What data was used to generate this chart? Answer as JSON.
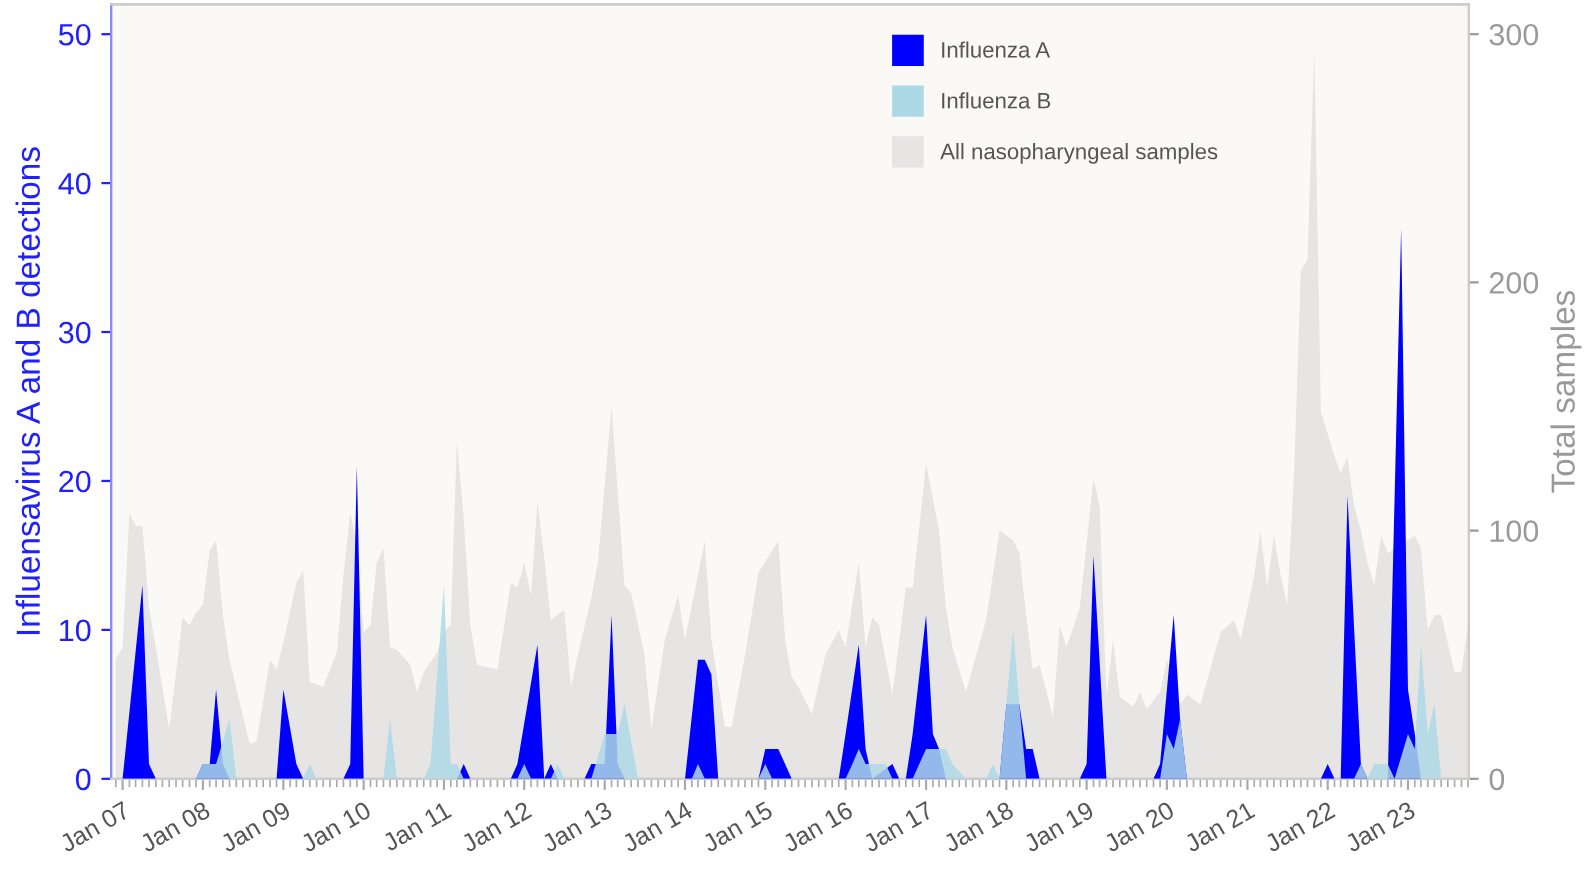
{
  "chart_data": {
    "type": "area",
    "ylabel": "Influensavirus A and B detections",
    "y2label": "Total samples",
    "ylim": [
      0,
      52
    ],
    "yticks": [
      0,
      10,
      20,
      30,
      40,
      50
    ],
    "y2lim": [
      0,
      312
    ],
    "y2ticks": [
      0,
      100,
      200,
      300
    ],
    "xlim": [
      "2006-11-10",
      "2023-10-05"
    ],
    "xticks": [
      {
        "value": "2007-01",
        "label": "Jan 07"
      },
      {
        "value": "2008-01",
        "label": "Jan 08"
      },
      {
        "value": "2009-01",
        "label": "Jan 09"
      },
      {
        "value": "2010-01",
        "label": "Jan 10"
      },
      {
        "value": "2011-01",
        "label": "Jan 11"
      },
      {
        "value": "2012-01",
        "label": "Jan 12"
      },
      {
        "value": "2013-01",
        "label": "Jan 13"
      },
      {
        "value": "2014-01",
        "label": "Jan 14"
      },
      {
        "value": "2015-01",
        "label": "Jan 15"
      },
      {
        "value": "2016-01",
        "label": "Jan 16"
      },
      {
        "value": "2017-01",
        "label": "Jan 17"
      },
      {
        "value": "2018-01",
        "label": "Jan 18"
      },
      {
        "value": "2019-01",
        "label": "Jan 19"
      },
      {
        "value": "2020-01",
        "label": "Jan 20"
      },
      {
        "value": "2021-01",
        "label": "Jan 21"
      },
      {
        "value": "2022-01",
        "label": "Jan 22"
      },
      {
        "value": "2023-01",
        "label": "Jan 23"
      }
    ],
    "grid": false,
    "legend": "top right",
    "series": [
      {
        "name": "All nasopharyngeal samples",
        "color": "#e6e5e3",
        "axis": "y2",
        "x": [
          "2006-12",
          "2007-01",
          "2007-02",
          "2007-03",
          "2007-04",
          "2007-05",
          "2007-06",
          "2007-08",
          "2007-10",
          "2007-11",
          "2007-12",
          "2008-01",
          "2008-02",
          "2008-03",
          "2008-04",
          "2008-05",
          "2008-08",
          "2008-09",
          "2008-11",
          "2008-12",
          "2009-01",
          "2009-03",
          "2009-04",
          "2009-05",
          "2009-07",
          "2009-09",
          "2009-10",
          "2009-11",
          "2009-12",
          "2010-01",
          "2010-02",
          "2010-03",
          "2010-04",
          "2010-05",
          "2010-06",
          "2010-08",
          "2010-09",
          "2010-10",
          "2010-12",
          "2011-01",
          "2011-02",
          "2011-03",
          "2011-04",
          "2011-05",
          "2011-06",
          "2011-09",
          "2011-11",
          "2011-12",
          "2012-01",
          "2012-02",
          "2012-03",
          "2012-04",
          "2012-05",
          "2012-07",
          "2012-08",
          "2012-09",
          "2012-11",
          "2012-12",
          "2013-02",
          "2013-04",
          "2013-05",
          "2013-07",
          "2013-08",
          "2013-10",
          "2013-12",
          "2014-01",
          "2014-04",
          "2014-05",
          "2014-07",
          "2014-08",
          "2014-10",
          "2014-12",
          "2015-03",
          "2015-04",
          "2015-05",
          "2015-06",
          "2015-08",
          "2015-10",
          "2015-12",
          "2016-01",
          "2016-03",
          "2016-04",
          "2016-05",
          "2016-06",
          "2016-08",
          "2016-10",
          "2016-11",
          "2017-01",
          "2017-03",
          "2017-04",
          "2017-05",
          "2017-07",
          "2017-10",
          "2017-12",
          "2018-02",
          "2018-03",
          "2018-04",
          "2018-05",
          "2018-06",
          "2018-08",
          "2018-09",
          "2018-10",
          "2018-12",
          "2019-02",
          "2019-03",
          "2019-04",
          "2019-05",
          "2019-06",
          "2019-08",
          "2019-09",
          "2019-10",
          "2019-12",
          "2020-01",
          "2020-03",
          "2020-04",
          "2020-06",
          "2020-09",
          "2020-11",
          "2020-12",
          "2021-02",
          "2021-03",
          "2021-04",
          "2021-05",
          "2021-06",
          "2021-07",
          "2021-08",
          "2021-09",
          "2021-10",
          "2021-11",
          "2021-12",
          "2022-02",
          "2022-03",
          "2022-04",
          "2022-05",
          "2022-06",
          "2022-07",
          "2022-08",
          "2022-09",
          "2022-10",
          "2023-02",
          "2023-03",
          "2023-04",
          "2023-05",
          "2023-06",
          "2023-08",
          "2023-09",
          "2023-10"
        ],
        "values": [
          48,
          53,
          107,
          102,
          102,
          69,
          53,
          20,
          65,
          62,
          67,
          70,
          92,
          96,
          66,
          48,
          14,
          15,
          48,
          44,
          55,
          79,
          84,
          39,
          37,
          51,
          82,
          107,
          95,
          59,
          62,
          87,
          93,
          53,
          52,
          46,
          35,
          43,
          51,
          59,
          62,
          136,
          105,
          62,
          46,
          44,
          79,
          77,
          87,
          74,
          112,
          89,
          64,
          68,
          37,
          50,
          73,
          87,
          150,
          78,
          75,
          50,
          20,
          56,
          74,
          56,
          96,
          56,
          21,
          21,
          50,
          83,
          96,
          56,
          41,
          37,
          26,
          50,
          60,
          53,
          87,
          53,
          65,
          62,
          34,
          77,
          77,
          127,
          100,
          69,
          53,
          35,
          64,
          100,
          96,
          91,
          66,
          44,
          46,
          25,
          62,
          53,
          69,
          121,
          110,
          33,
          56,
          33,
          29,
          35,
          28,
          35,
          48,
          30,
          34,
          30,
          59,
          64,
          56,
          82,
          100,
          77,
          98,
          82,
          70,
          123,
          205,
          209,
          294,
          148,
          130,
          123,
          130,
          110,
          100,
          87,
          78,
          98,
          91,
          98,
          93,
          60,
          66,
          66,
          43,
          43,
          62
        ]
      },
      {
        "name": "Influenza A",
        "color": "#0000ff",
        "x": [
          "2006-12",
          "2007-01",
          "2007-04",
          "2007-05",
          "2007-06",
          "2007-12",
          "2008-01",
          "2008-02",
          "2008-03",
          "2008-04",
          "2008-05",
          "2008-12",
          "2009-01",
          "2009-03",
          "2009-04",
          "2009-10",
          "2009-11",
          "2009-12",
          "2010-01",
          "2011-03",
          "2011-04",
          "2011-05",
          "2011-11",
          "2011-12",
          "2012-03",
          "2012-04",
          "2012-05",
          "2012-06",
          "2012-10",
          "2012-11",
          "2013-01",
          "2013-02",
          "2013-03",
          "2013-04",
          "2014-01",
          "2014-03",
          "2014-04",
          "2014-05",
          "2014-06",
          "2014-12",
          "2015-01",
          "2015-03",
          "2015-04",
          "2015-05",
          "2015-12",
          "2016-01",
          "2016-03",
          "2016-04",
          "2016-05",
          "2016-08",
          "2016-09",
          "2016-10",
          "2016-11",
          "2017-01",
          "2017-02",
          "2017-03",
          "2017-04",
          "2017-12",
          "2018-01",
          "2018-03",
          "2018-04",
          "2018-05",
          "2018-06",
          "2018-12",
          "2019-01",
          "2019-02",
          "2019-04",
          "2019-11",
          "2019-12",
          "2020-01",
          "2020-02",
          "2020-03",
          "2020-04",
          "2021-12",
          "2022-01",
          "2022-02",
          "2022-03",
          "2022-04",
          "2022-06",
          "2022-07",
          "2022-10",
          "2022-12",
          "2023-01",
          "2023-02",
          "2023-03",
          "2023-10"
        ],
        "values": [
          0,
          0,
          13,
          1,
          0,
          0,
          1,
          1,
          6,
          1,
          0,
          0,
          6,
          1,
          0,
          0,
          1,
          21,
          0,
          0,
          1,
          0,
          0,
          1,
          9,
          0,
          1,
          0,
          0,
          1,
          1,
          11,
          1,
          0,
          0,
          8,
          8,
          7,
          0,
          0,
          2,
          2,
          1,
          0,
          0,
          3,
          9,
          2,
          0,
          1,
          0,
          0,
          3,
          11,
          3,
          2,
          0,
          0,
          5,
          5,
          2,
          2,
          0,
          0,
          1,
          15,
          0,
          0,
          1,
          6,
          11,
          4,
          0,
          0,
          1,
          0,
          0,
          19,
          1,
          0,
          0,
          37,
          6,
          3,
          0,
          0
        ]
      },
      {
        "name": "Influenza B",
        "color": "#add8e6",
        "x": [
          "2006-12",
          "2007-12",
          "2008-01",
          "2008-03",
          "2008-05",
          "2008-06",
          "2009-04",
          "2009-05",
          "2009-06",
          "2010-04",
          "2010-05",
          "2010-06",
          "2010-10",
          "2010-11",
          "2011-01",
          "2011-02",
          "2011-03",
          "2011-04",
          "2011-12",
          "2012-01",
          "2012-02",
          "2012-05",
          "2012-06",
          "2012-07",
          "2012-11",
          "2013-01",
          "2013-03",
          "2013-04",
          "2013-06",
          "2014-02",
          "2014-03",
          "2014-04",
          "2014-12",
          "2015-01",
          "2015-02",
          "2016-01",
          "2016-02",
          "2016-03",
          "2016-04",
          "2016-07",
          "2016-08",
          "2016-11",
          "2016-12",
          "2017-01",
          "2017-04",
          "2017-05",
          "2017-07",
          "2017-10",
          "2017-11",
          "2017-12",
          "2018-01",
          "2018-02",
          "2018-03",
          "2018-04",
          "2019-12",
          "2020-01",
          "2020-02",
          "2020-03",
          "2020-04",
          "2022-05",
          "2022-06",
          "2022-07",
          "2022-08",
          "2022-10",
          "2022-11",
          "2023-01",
          "2023-02",
          "2023-03",
          "2023-04",
          "2023-05",
          "2023-06",
          "2023-10"
        ],
        "values": [
          0,
          0,
          1,
          1,
          4,
          0,
          0,
          1,
          0,
          0,
          4,
          0,
          0,
          1,
          13,
          1,
          1,
          0,
          0,
          1,
          0,
          0,
          1,
          0,
          0,
          3,
          3,
          5,
          0,
          0,
          1,
          0,
          0,
          1,
          0,
          0,
          1,
          2,
          1,
          1,
          0,
          0,
          1,
          2,
          2,
          1,
          0,
          0,
          1,
          0,
          5,
          10,
          5,
          0,
          0,
          3,
          2,
          4,
          0,
          0,
          1,
          0,
          1,
          1,
          0,
          3,
          2,
          9,
          3,
          5,
          0,
          0
        ]
      }
    ]
  }
}
